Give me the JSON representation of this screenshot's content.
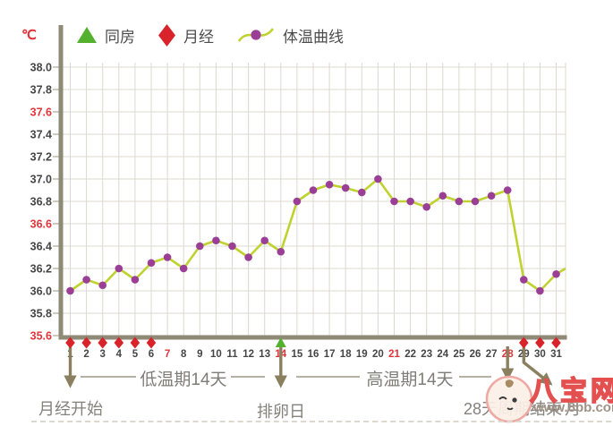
{
  "legend": {
    "items": [
      {
        "id": "intercourse",
        "label": "同房",
        "marker": "triangle-icon",
        "color": "#53b12e"
      },
      {
        "id": "menstruation",
        "label": "月经",
        "marker": "diamond-icon",
        "color": "#d8232b"
      },
      {
        "id": "temperature",
        "label": "体温曲线",
        "marker": "curve-dot-icon",
        "color": "#bfd22f",
        "dot_color": "#9b3e96"
      }
    ]
  },
  "chart_data": {
    "type": "line",
    "unit": "℃",
    "x": [
      1,
      2,
      3,
      4,
      5,
      6,
      7,
      8,
      9,
      10,
      11,
      12,
      13,
      14,
      15,
      16,
      17,
      18,
      19,
      20,
      21,
      22,
      23,
      24,
      25,
      26,
      27,
      28,
      29,
      30,
      31
    ],
    "series": [
      {
        "name": "体温曲线",
        "values": [
          36.0,
          36.1,
          36.05,
          36.2,
          36.1,
          36.25,
          36.3,
          36.2,
          36.4,
          36.45,
          36.4,
          36.3,
          36.45,
          36.35,
          36.8,
          36.9,
          36.95,
          36.92,
          36.88,
          37.0,
          36.8,
          36.8,
          36.75,
          36.85,
          36.8,
          36.8,
          36.85,
          36.9,
          36.1,
          36.0,
          36.15
        ]
      }
    ],
    "edge_extension_value": 36.2,
    "ylim": [
      35.6,
      38.0
    ],
    "yticks": [
      "38.0",
      "37.8",
      "37.6",
      "37.4",
      "37.2",
      "37.0",
      "36.8",
      "36.6",
      "36.4",
      "36.2",
      "36.0",
      "35.8",
      "35.6"
    ],
    "red_yticks": [
      "37.6",
      "36.6",
      "35.6"
    ],
    "red_xticks": [
      7,
      14,
      21,
      28
    ],
    "grid": true,
    "legend_position": "top",
    "markers": {
      "menstruation_days": [
        1,
        2,
        3,
        4,
        5,
        6,
        29,
        30,
        31
      ],
      "intercourse_days": [
        14
      ]
    }
  },
  "annotations": {
    "low_phase_label": "低温期14天",
    "high_phase_label": "高温期14天",
    "menses_start_label": "月经开始",
    "menses_start_day": 1,
    "ovulation_label": "排卵日",
    "ovulation_day": 14,
    "cycle_end_label": "28天周期结束",
    "cycle_end_day": 28,
    "next_cycle_label": "月",
    "next_cycle_day": 29
  },
  "watermark": {
    "site_name": "八宝网",
    "site_url": "www.8bb.com",
    "badge": "baby-face-icon"
  },
  "colors": {
    "accent_red": "#e1343a",
    "marker_red": "#d8232b",
    "marker_green": "#53b12e",
    "line_yellow_green": "#bfd22f",
    "dot_purple": "#9b3e96",
    "axis_olive": "#8e8a76",
    "arrow_olive": "#8a8060",
    "phase_line_gray": "#b5b1a4",
    "grid_gray": "#dcd8cf",
    "tick_text_dark": "#454545",
    "watermark_red": "#e4504f",
    "watermark_url_gray": "#9f9287"
  }
}
